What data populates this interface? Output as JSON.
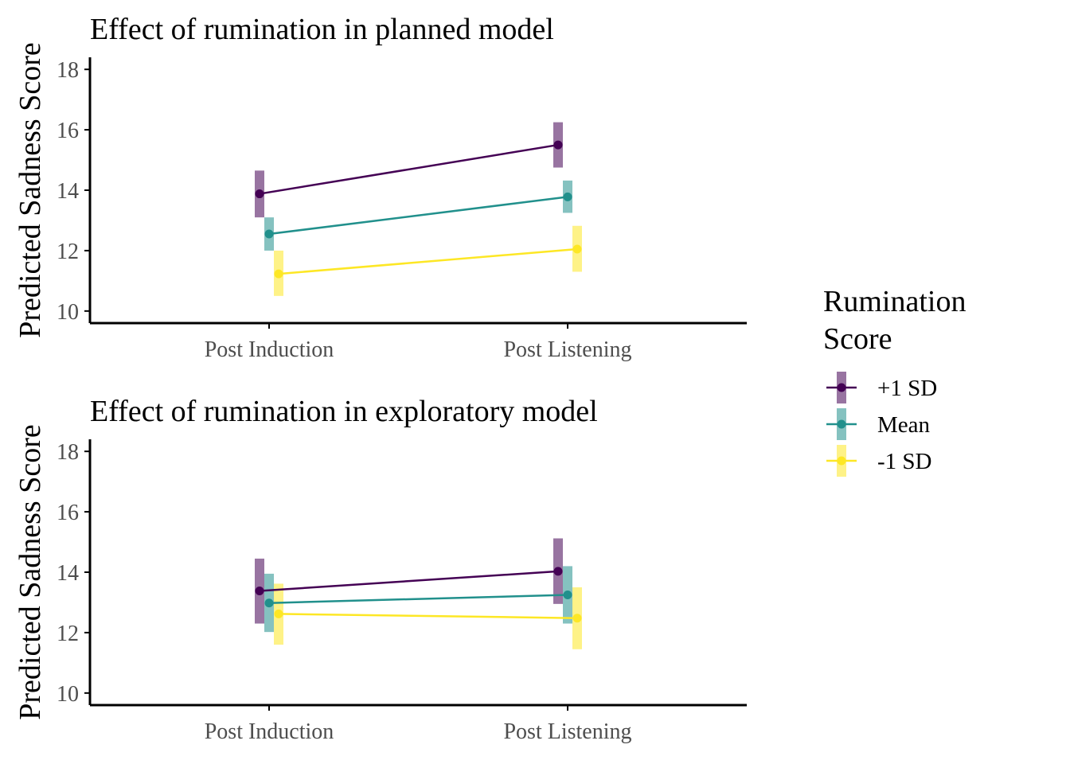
{
  "legend": {
    "title_line1": "Rumination",
    "title_line2": "Score",
    "position": "right"
  },
  "chart_data": [
    {
      "type": "line",
      "title": "Effect of rumination in planned model",
      "xlabel": "",
      "ylabel": "Predicted Sadness Score",
      "categories": [
        "Post Induction",
        "Post Listening"
      ],
      "ylim": [
        9.6,
        18.4
      ],
      "yticks": [
        10,
        12,
        14,
        16,
        18
      ],
      "grid": false,
      "series": [
        {
          "name": "+1 SD",
          "color": "#440154",
          "values": [
            13.88,
            15.5
          ],
          "lower": [
            13.1,
            14.75
          ],
          "upper": [
            14.65,
            16.25
          ]
        },
        {
          "name": "Mean",
          "color": "#21908C",
          "values": [
            12.55,
            13.78
          ],
          "lower": [
            12.0,
            13.25
          ],
          "upper": [
            13.1,
            14.32
          ]
        },
        {
          "name": "-1 SD",
          "color": "#FDE725",
          "values": [
            11.23,
            12.05
          ],
          "lower": [
            10.5,
            11.3
          ],
          "upper": [
            12.0,
            12.82
          ]
        }
      ]
    },
    {
      "type": "line",
      "title": "Effect of rumination in exploratory model",
      "xlabel": "",
      "ylabel": "Predicted Sadness Score",
      "categories": [
        "Post Induction",
        "Post Listening"
      ],
      "ylim": [
        9.6,
        18.4
      ],
      "yticks": [
        10,
        12,
        14,
        16,
        18
      ],
      "grid": false,
      "series": [
        {
          "name": "+1 SD",
          "color": "#440154",
          "values": [
            13.38,
            14.03
          ],
          "lower": [
            12.3,
            12.95
          ],
          "upper": [
            14.45,
            15.12
          ]
        },
        {
          "name": "Mean",
          "color": "#21908C",
          "values": [
            12.98,
            13.25
          ],
          "lower": [
            12.02,
            12.3
          ],
          "upper": [
            13.95,
            14.2
          ]
        },
        {
          "name": "-1 SD",
          "color": "#FDE725",
          "values": [
            12.62,
            12.48
          ],
          "lower": [
            11.6,
            11.45
          ],
          "upper": [
            13.62,
            13.5
          ]
        }
      ]
    }
  ]
}
